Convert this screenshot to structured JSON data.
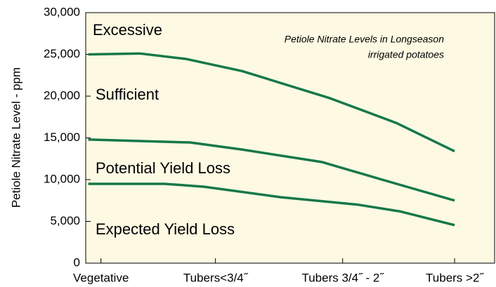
{
  "chart_data": {
    "type": "line",
    "title": [
      "Petiole Nitrate Levels in Longseason",
      "irrigated potatoes"
    ],
    "ylabel": "Petiole Nitrate Level - ppm",
    "annotations": [
      "Excessive",
      "Sufficient",
      "Potential Yield Loss",
      "Expected Yield Loss"
    ],
    "background": "#fdf9e3",
    "xlim": [
      -0.02,
      3.2
    ],
    "xticks": [
      {
        "value": 0.1,
        "label": "Vegetative"
      },
      {
        "value": 1,
        "label": "Tubers<3/4˝"
      },
      {
        "value": 2,
        "label": "Tubers 3/4˝ - 2˝"
      },
      {
        "value": 2.88,
        "label": "Tubers >2˝"
      }
    ],
    "ylim": [
      0,
      30000
    ],
    "yticks": [
      0,
      {
        "value": 5000,
        "label": "5,000"
      },
      {
        "value": 10000,
        "label": "10,000"
      },
      {
        "value": 15000,
        "label": "15,000"
      },
      {
        "value": 20000,
        "label": "20,000"
      },
      {
        "value": 25000,
        "label": "25,000"
      },
      {
        "value": 30000,
        "label": "30,000"
      }
    ],
    "series": [
      {
        "color": "#16784a",
        "x": [
          0,
          0.41,
          0.77,
          1.21,
          1.9,
          2.42,
          2.88
        ],
        "values": [
          25000,
          25100,
          24450,
          23000,
          19750,
          16800,
          13400
        ]
      },
      {
        "color": "#16784a",
        "x": [
          0,
          0.8,
          1.21,
          1.84,
          2.31,
          2.88
        ],
        "values": [
          14800,
          14450,
          13600,
          12100,
          10000,
          7500
        ]
      },
      {
        "color": "#16784a",
        "x": [
          0,
          0.6,
          0.91,
          1.51,
          2.12,
          2.45,
          2.88
        ],
        "values": [
          9500,
          9500,
          9150,
          7900,
          7000,
          6200,
          4550
        ]
      }
    ]
  }
}
